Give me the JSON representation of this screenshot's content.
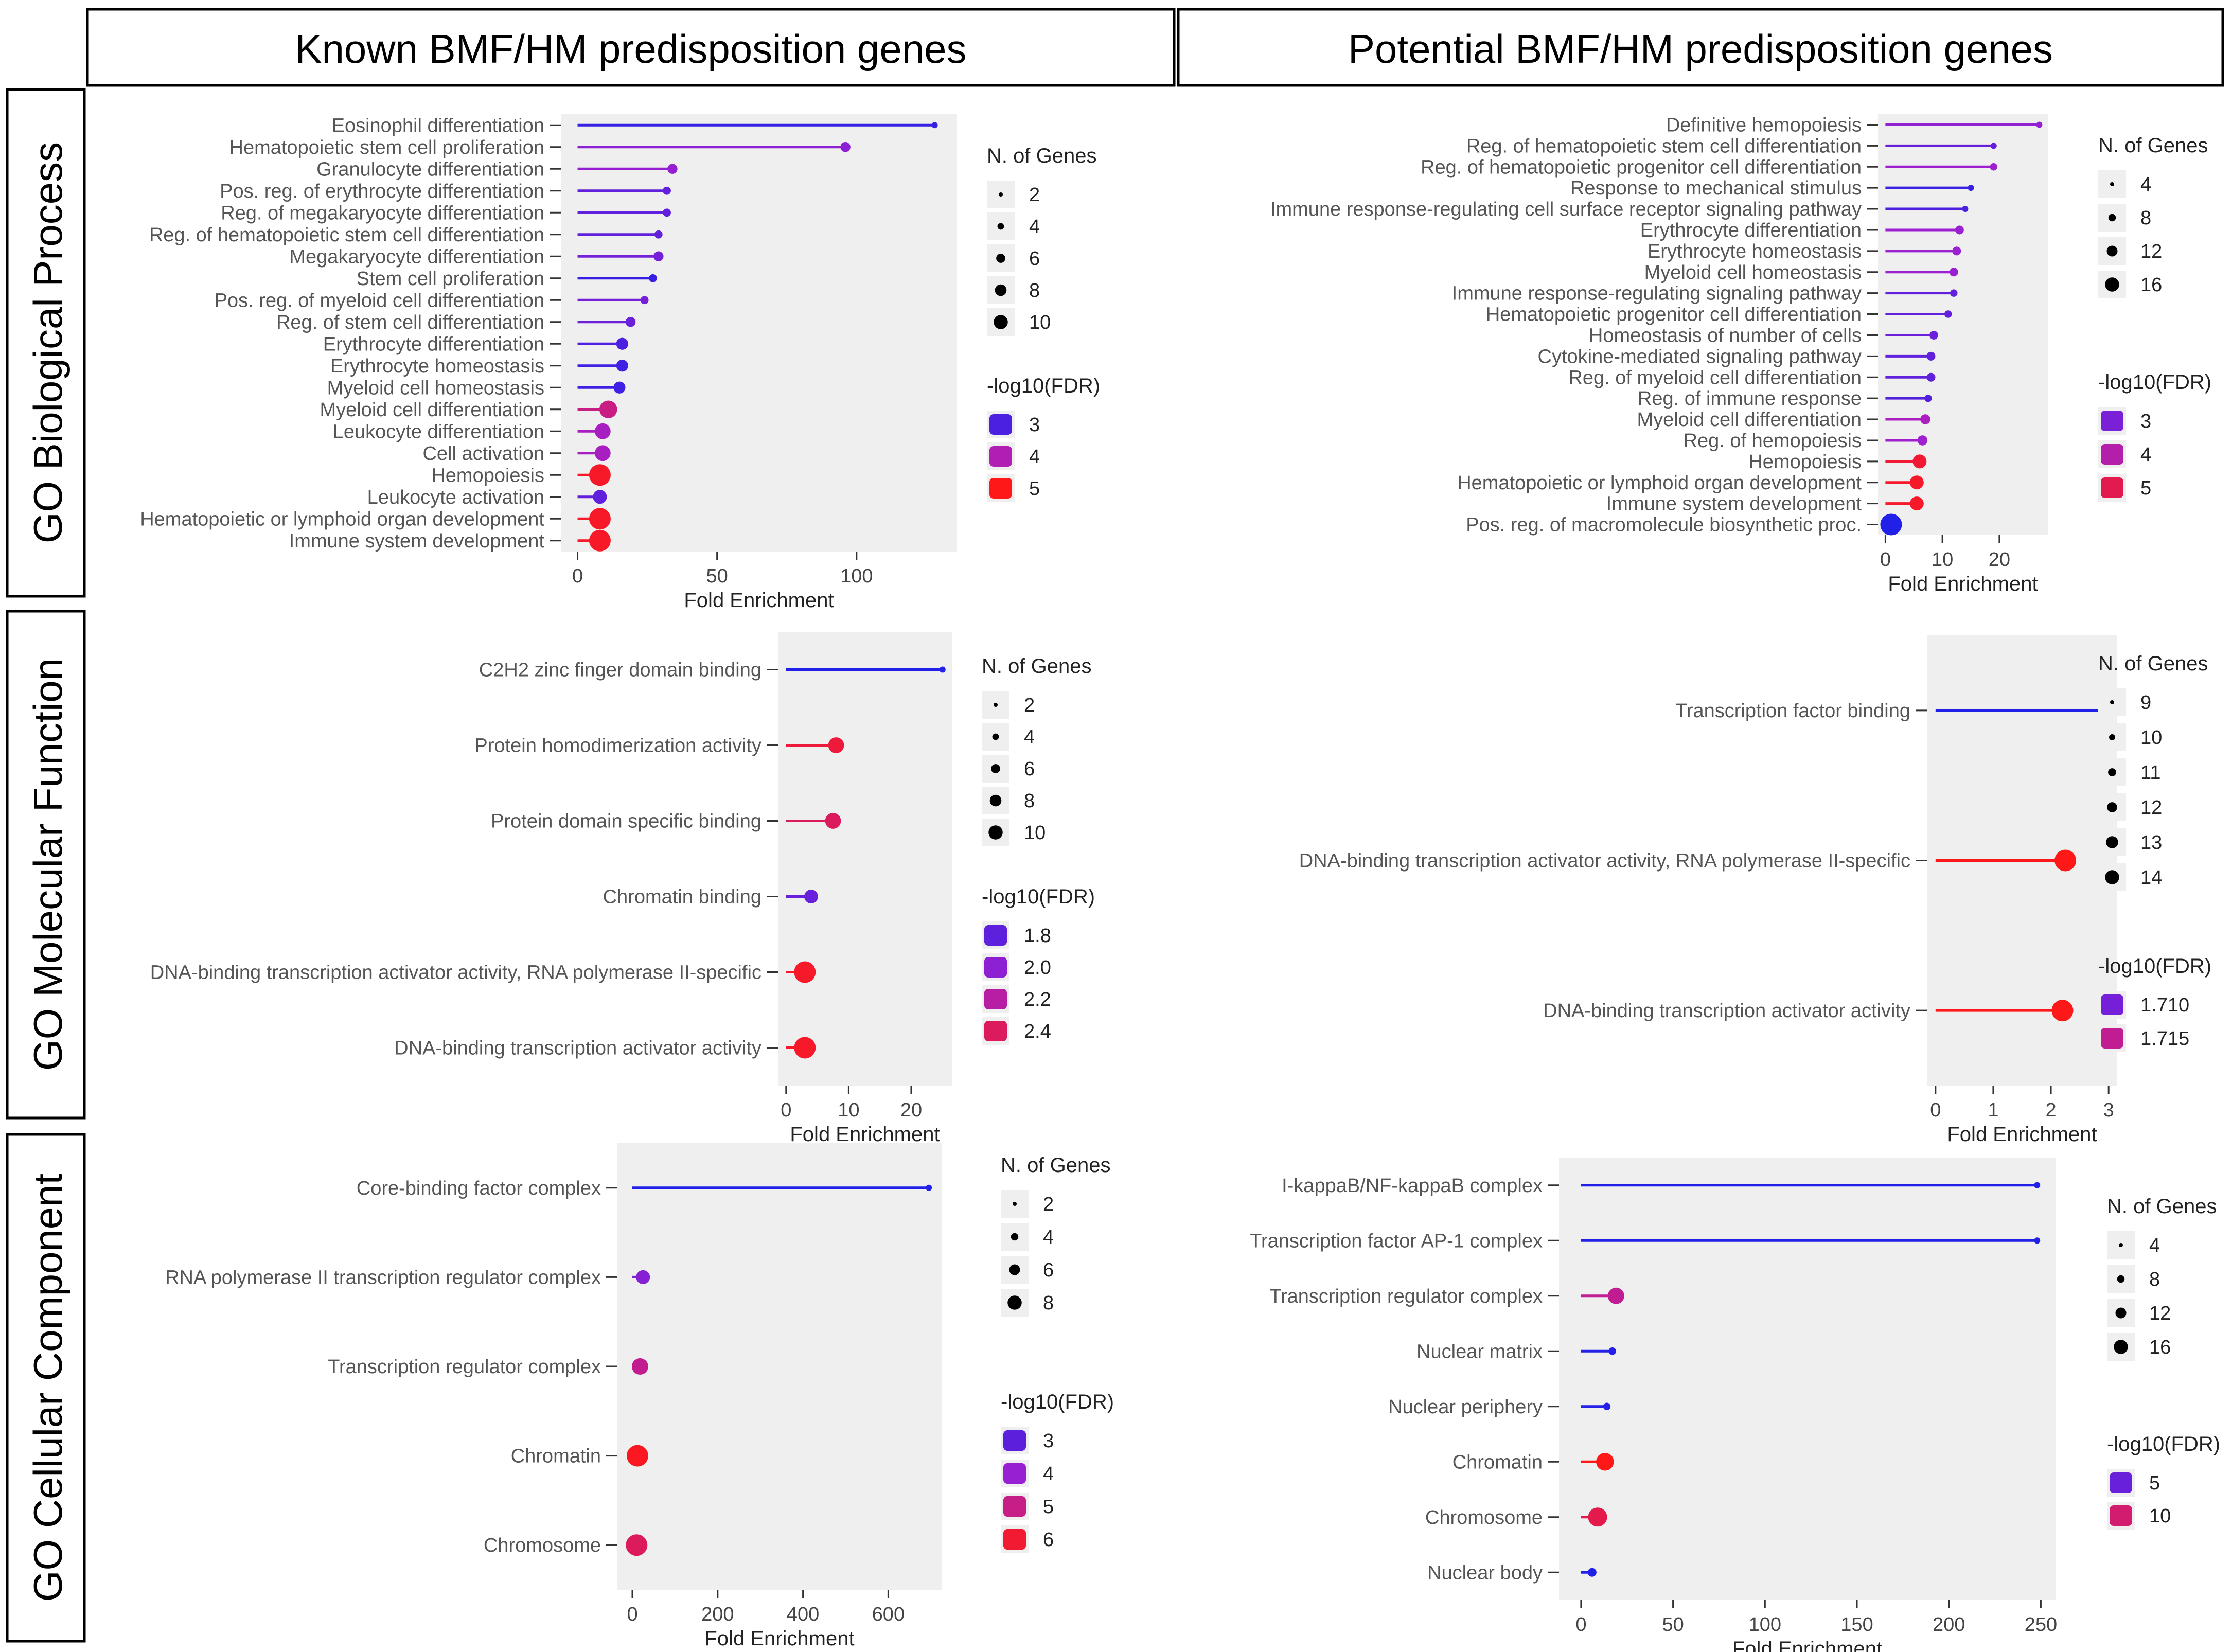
{
  "headers": {
    "columns": [
      "Known BMF/HM predisposition genes",
      "Potential BMF/HM predisposition genes"
    ],
    "rows": [
      "GO Biological Process",
      "GO Molecular Function",
      "GO Cellular Component"
    ]
  },
  "colors": {
    "low": "#2020e8",
    "mid": "#a020d0",
    "high": "#ff1818",
    "grid_bg": "#efefef"
  },
  "chart_data": [
    {
      "id": "bp_known",
      "type": "lollipop",
      "title": "Known BMF/HM predisposition genes - GO Biological Process",
      "xlabel": "Fold Enrichment",
      "xticks": [
        0,
        50,
        100
      ],
      "xlim": [
        -6,
        136
      ],
      "categories": [
        "Eosinophil differentiation",
        "Hematopoietic stem cell proliferation",
        "Granulocyte differentiation",
        "Pos. reg. of erythrocyte differentiation",
        "Reg. of megakaryocyte differentiation",
        "Reg. of hematopoietic stem cell differentiation",
        "Megakaryocyte differentiation",
        "Stem cell proliferation",
        "Pos. reg. of myeloid cell differentiation",
        "Reg. of stem cell differentiation",
        "Erythrocyte differentiation",
        "Erythrocyte homeostasis",
        "Myeloid cell homeostasis",
        "Myeloid cell differentiation",
        "Leukocyte differentiation",
        "Cell activation",
        "Hemopoiesis",
        "Leukocyte activation",
        "Hematopoietic or lymphoid organ development",
        "Immune system development"
      ],
      "values": [
        128,
        96,
        34,
        32,
        32,
        29,
        29,
        27,
        24,
        19,
        16,
        16,
        15,
        11,
        9,
        9,
        8,
        8,
        8,
        8
      ],
      "n_genes": [
        2,
        4,
        4,
        3,
        3,
        3,
        4,
        3,
        3,
        4,
        5,
        5,
        5,
        8,
        7,
        7,
        10,
        6,
        10,
        10
      ],
      "fdr": [
        2.8,
        3.6,
        3.7,
        3.2,
        3.2,
        3.2,
        3.4,
        2.8,
        3.4,
        3.3,
        3.0,
        2.9,
        2.9,
        4.3,
        3.9,
        3.9,
        4.9,
        3.2,
        4.9,
        4.9
      ],
      "fdr_range": [
        2.6,
        5.0
      ],
      "size_legend": {
        "title": "N. of Genes",
        "values": [
          2,
          4,
          6,
          8,
          10
        ]
      },
      "color_legend": {
        "title": "-log10(FDR)",
        "values": [
          "3",
          "4",
          "5"
        ],
        "levels": [
          3,
          4,
          5
        ]
      }
    },
    {
      "id": "bp_potential",
      "type": "lollipop",
      "title": "Potential BMF/HM predisposition genes - GO Biological Process",
      "xlabel": "Fold Enrichment",
      "xticks": [
        0,
        10,
        20
      ],
      "xlim": [
        -1.3,
        28.5
      ],
      "categories": [
        "Definitive hemopoiesis",
        "Reg. of hematopoietic stem cell differentiation",
        "Reg. of hematopoietic progenitor cell differentiation",
        "Response to mechanical stimulus",
        "Immune response-regulating cell surface receptor signaling pathway",
        "Erythrocyte differentiation",
        "Erythrocyte homeostasis",
        "Myeloid cell homeostasis",
        "Immune response-regulating signaling pathway",
        "Hematopoietic progenitor cell differentiation",
        "Homeostasis of number of cells",
        "Cytokine-mediated signaling pathway",
        "Reg. of myeloid cell differentiation",
        "Reg. of immune response",
        "Myeloid cell differentiation",
        "Reg. of hemopoiesis",
        "Hemopoiesis",
        "Hematopoietic or lymphoid organ development",
        "Immune system development",
        "Pos. reg. of macromolecule biosynthetic proc."
      ],
      "values": [
        27,
        19,
        19,
        15,
        14,
        13,
        12.5,
        12,
        12,
        11,
        8.5,
        8,
        8,
        7.5,
        7,
        6.5,
        6,
        5.5,
        5.5,
        1
      ],
      "n_genes": [
        4,
        4,
        5,
        4,
        4,
        6,
        6,
        6,
        5,
        5,
        6,
        6,
        6,
        5,
        7,
        7,
        10,
        10,
        10,
        16
      ],
      "fdr": [
        3.4,
        2.7,
        3.6,
        2.0,
        2.3,
        3.5,
        3.5,
        3.5,
        2.6,
        2.6,
        2.8,
        2.6,
        2.6,
        2.4,
        3.8,
        3.6,
        5.3,
        5.4,
        5.4,
        1.6
      ],
      "fdr_range": [
        1.6,
        5.6
      ],
      "size_legend": {
        "title": "N. of Genes",
        "values": [
          4,
          8,
          12,
          16
        ]
      },
      "color_legend": {
        "title": "-log10(FDR)",
        "values": [
          "3",
          "4",
          "5"
        ],
        "levels": [
          3,
          4,
          5
        ]
      }
    },
    {
      "id": "mf_known",
      "type": "lollipop",
      "title": "Known BMF/HM predisposition genes - GO Molecular Function",
      "xlabel": "Fold Enrichment",
      "xticks": [
        0,
        10,
        20
      ],
      "xlim": [
        -1.3,
        26.5
      ],
      "categories": [
        "C2H2 zinc finger domain binding",
        "Protein homodimerization activity",
        "Protein domain specific binding",
        "Chromatin binding",
        "DNA-binding transcription activator activity, RNA polymerase II-specific",
        "DNA-binding transcription activator activity"
      ],
      "values": [
        25,
        8,
        7.5,
        4,
        3,
        3
      ],
      "n_genes": [
        2,
        7,
        7,
        6,
        10,
        10
      ],
      "fdr": [
        1.55,
        2.5,
        2.4,
        1.85,
        2.55,
        2.55
      ],
      "fdr_range": [
        1.55,
        2.6
      ],
      "size_legend": {
        "title": "N. of Genes",
        "values": [
          2,
          4,
          6,
          8,
          10
        ]
      },
      "color_legend": {
        "title": "-log10(FDR)",
        "values": [
          "1.8",
          "2.0",
          "2.2",
          "2.4"
        ],
        "levels": [
          1.8,
          2.0,
          2.2,
          2.4
        ]
      }
    },
    {
      "id": "mf_potential",
      "type": "lollipop",
      "title": "Potential BMF/HM predisposition genes - GO Molecular Function",
      "xlabel": "Fold Enrichment",
      "xticks": [
        0,
        1,
        2,
        3
      ],
      "xlim": [
        -0.15,
        3.15
      ],
      "categories": [
        "Transcription factor binding",
        "DNA-binding transcription activator activity, RNA polymerase II-specific",
        "DNA-binding transcription activator activity"
      ],
      "values": [
        3.05,
        2.25,
        2.2
      ],
      "n_genes": [
        9,
        14,
        14
      ],
      "fdr": [
        1.7,
        1.722,
        1.722
      ],
      "fdr_range": [
        1.705,
        1.72
      ],
      "size_legend": {
        "title": "N. of Genes",
        "values": [
          9,
          10,
          11,
          12,
          13,
          14
        ]
      },
      "color_legend": {
        "title": "-log10(FDR)",
        "values": [
          "1.710",
          "1.715"
        ],
        "levels": [
          1.71,
          1.715
        ]
      }
    },
    {
      "id": "cc_known",
      "type": "lollipop",
      "title": "Known BMF/HM predisposition genes - GO Cellular Component",
      "xlabel": "Fold Enrichment",
      "xticks": [
        0,
        200,
        400,
        600
      ],
      "xlim": [
        -35,
        725
      ],
      "categories": [
        "Core-binding factor complex",
        "RNA polymerase II transcription regulator complex",
        "Transcription regulator complex",
        "Chromatin",
        "Chromosome"
      ],
      "values": [
        695,
        25,
        18,
        12,
        10
      ],
      "n_genes": [
        2,
        5,
        6,
        8,
        8
      ],
      "fdr": [
        2.0,
        3.7,
        4.9,
        6.2,
        5.5
      ],
      "fdr_range": [
        2.0,
        6.3
      ],
      "size_legend": {
        "title": "N. of Genes",
        "values": [
          2,
          4,
          6,
          8
        ]
      },
      "color_legend": {
        "title": "-log10(FDR)",
        "values": [
          "3",
          "4",
          "5",
          "6"
        ],
        "levels": [
          3,
          4,
          5,
          6
        ]
      }
    },
    {
      "id": "cc_potential",
      "type": "lollipop",
      "title": "Potential BMF/HM predisposition genes - GO Cellular Component",
      "xlabel": "Fold Enrichment",
      "xticks": [
        0,
        50,
        100,
        150,
        200,
        250
      ],
      "xlim": [
        -12,
        258
      ],
      "categories": [
        "I-kappaB/NF-kappaB complex",
        "Transcription factor AP-1 complex",
        "Transcription regulator complex",
        "Nuclear matrix",
        "Nuclear periphery",
        "Chromatin",
        "Chromosome",
        "Nuclear body"
      ],
      "values": [
        248,
        248,
        19,
        17,
        14,
        13,
        9,
        6
      ],
      "n_genes": [
        4,
        4,
        12,
        5,
        5,
        13,
        14,
        6
      ],
      "fdr": [
        2.0,
        2.0,
        9.0,
        2.2,
        2.2,
        12.5,
        11.0,
        2.0
      ],
      "fdr_range": [
        2.0,
        12.5
      ],
      "size_legend": {
        "title": "N. of Genes",
        "values": [
          4,
          8,
          12,
          16
        ]
      },
      "color_legend": {
        "title": "-log10(FDR)",
        "values": [
          "5",
          "10"
        ],
        "levels": [
          5,
          10
        ]
      }
    }
  ]
}
